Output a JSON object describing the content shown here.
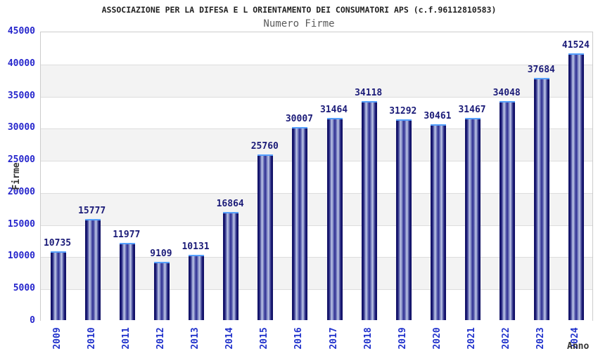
{
  "title": "ASSOCIAZIONE PER LA DIFESA E L ORIENTAMENTO DEI CONSUMATORI APS (c.f.96112810583)",
  "subtitle": "Numero Firme",
  "chart_data": {
    "type": "bar",
    "categories": [
      "2009",
      "2010",
      "2011",
      "2012",
      "2013",
      "2014",
      "2015",
      "2016",
      "2017",
      "2018",
      "2019",
      "2020",
      "2021",
      "2022",
      "2023",
      "2024"
    ],
    "values": [
      10735,
      15777,
      11977,
      9109,
      10131,
      16864,
      25760,
      30007,
      31464,
      34118,
      31292,
      30461,
      31467,
      34048,
      37684,
      41524
    ],
    "title": "ASSOCIAZIONE PER LA DIFESA E L ORIENTAMENTO DEI CONSUMATORI APS (c.f.96112810583)",
    "subtitle": "Numero Firme",
    "xlabel": "Anno",
    "ylabel": "Firme",
    "ylim": [
      0,
      45000
    ],
    "ytick_step": 5000,
    "grid": true,
    "legend": "none",
    "background_bands": "alternating white / light gray"
  },
  "colors": {
    "bar_dark": "#0d0d60",
    "bar_mid": "#2b2b90",
    "bar_highlight": "#c6cce8",
    "bar_top_outline": "#55a0ff",
    "tick_label": "#2626cc",
    "value_label": "#1b1b78",
    "axis_label": "#333333",
    "gridline": "#dddddd",
    "band_gray": "#f3f3f3",
    "plot_border": "#cccccc",
    "title_color": "#222222",
    "subtitle_color": "#5a5a5a"
  }
}
